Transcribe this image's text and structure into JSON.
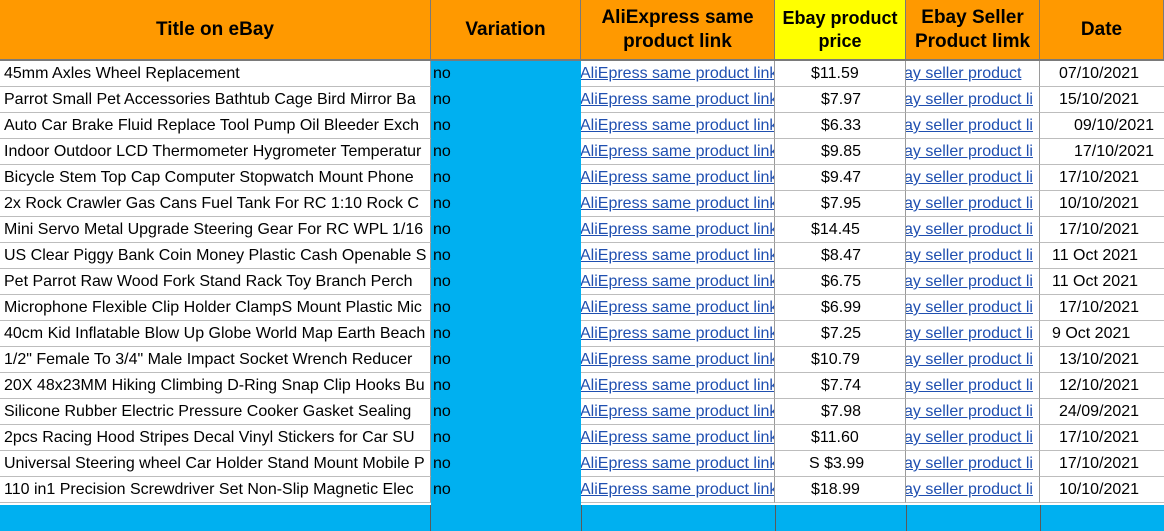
{
  "headers": {
    "title": "Title on eBay",
    "variation": "Variation",
    "ali_link": "AliExpress same product link",
    "ebay_price": "Ebay product price",
    "seller_link": "Ebay Seller Product limk",
    "date": "Date"
  },
  "rows": [
    {
      "title": "45mm Axles Wheel Replacement",
      "variation": "no",
      "ali": "AliEpress same product link",
      "price": "$11.59",
      "seller": "ay seller product",
      "date": "07/10/2021"
    },
    {
      "title": "Parrot Small Pet Accessories Bathtub Cage Bird Mirror Ba",
      "variation": "no",
      "ali": "AliEpress same product link",
      "price": "$7.97",
      "seller": "ay seller product li",
      "date": "15/10/2021"
    },
    {
      "title": "Auto Car Brake Fluid Replace Tool Pump Oil Bleeder Exch",
      "variation": "no",
      "ali": "AliEpress same product link",
      "price": "$6.33",
      "seller": "ay seller product li",
      "date": "09/10/2021"
    },
    {
      "title": "Indoor Outdoor LCD Thermometer Hygrometer Temperatur",
      "variation": "no",
      "ali": "AliEpress same product link",
      "price": "$9.85",
      "seller": "ay seller product li",
      "date": "17/10/2021"
    },
    {
      "title": "Bicycle Stem Top Cap Computer Stopwatch Mount Phone",
      "variation": "no",
      "ali": "AliEpress same product link",
      "price": "$9.47",
      "seller": "ay seller product li",
      "date": "17/10/2021"
    },
    {
      "title": "2x Rock Crawler Gas Cans Fuel Tank For RC 1:10 Rock C",
      "variation": "no",
      "ali": "AliEpress same product link",
      "price": "$7.95",
      "seller": "ay seller product li",
      "date": "10/10/2021"
    },
    {
      "title": "Mini Servo Metal Upgrade Steering Gear For RC WPL 1/16",
      "variation": "no",
      "ali": "AliEpress same product link",
      "price": "$14.45",
      "seller": "ay seller product li",
      "date": "17/10/2021"
    },
    {
      "title": "US Clear Piggy Bank Coin Money Plastic Cash Openable S",
      "variation": "no",
      "ali": "AliEpress same product link",
      "price": "$8.47",
      "seller": "ay seller product li",
      "date": "11 Oct 2021"
    },
    {
      "title": "Pet Parrot Raw Wood Fork Stand Rack Toy Branch Perch",
      "variation": "no",
      "ali": "AliEpress same product link",
      "price": "$6.75",
      "seller": "ay seller product li",
      "date": "11 Oct 2021"
    },
    {
      "title": "Microphone Flexible Clip Holder ClampS Mount Plastic Mic",
      "variation": "no",
      "ali": "AliEpress same product link",
      "price": "$6.99",
      "seller": "ay seller product li",
      "date": "17/10/2021"
    },
    {
      "title": "40cm Kid Inflatable Blow Up Globe World Map Earth Beach",
      "variation": "no",
      "ali": "AliEpress same product link",
      "price": "$7.25",
      "seller": "ay seller product li",
      "date": "9 Oct 2021"
    },
    {
      "title": "1/2\" Female To 3/4\" Male Impact Socket Wrench Reducer",
      "variation": "no",
      "ali": "AliEpress same product link",
      "price": "$10.79",
      "seller": "ay seller product li",
      "date": "13/10/2021"
    },
    {
      "title": "20X 48x23MM Hiking Climbing D-Ring Snap Clip Hooks Bu",
      "variation": "no",
      "ali": "AliEpress same product link",
      "price": "$7.74",
      "seller": "ay seller product li",
      "date": "12/10/2021"
    },
    {
      "title": "Silicone Rubber Electric Pressure Cooker Gasket Sealing",
      "variation": "no",
      "ali": "AliEpress same product link",
      "price": "$7.98",
      "seller": "ay seller product li",
      "date": "24/09/2021"
    },
    {
      "title": "2pcs Racing Hood Stripes Decal Vinyl Stickers for Car SU",
      "variation": "no",
      "ali": "AliEpress same product link",
      "price": "$11.60",
      "seller": "ay seller product li",
      "date": "17/10/2021"
    },
    {
      "title": "Universal Steering wheel Car Holder Stand Mount Mobile P",
      "variation": "no",
      "ali": "AliEpress same product link",
      "price": "S $3.99",
      "seller": "ay seller product li",
      "date": "17/10/2021"
    },
    {
      "title": "110 in1 Precision Screwdriver Set Non-Slip Magnetic Elec",
      "variation": "no",
      "ali": "AliEpress same product link",
      "price": "$18.99",
      "seller": "ay seller product li",
      "date": "10/10/2021"
    }
  ],
  "colors": {
    "header_orange": "#ff9900",
    "header_yellow": "#ffff00",
    "variation_blue": "#00b0f0",
    "link_blue": "#1f4fb0"
  }
}
